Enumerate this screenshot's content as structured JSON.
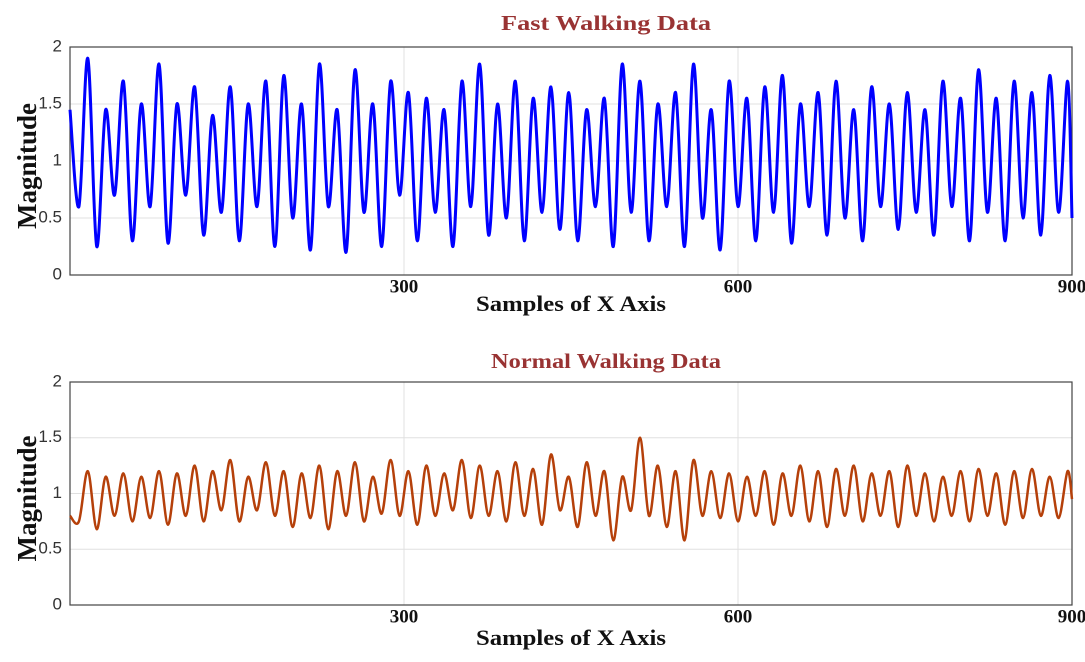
{
  "chart_data": [
    {
      "type": "line",
      "title": "Fast Walking Data",
      "x_label": "Samples of X Axis",
      "y_label": "Magnitude",
      "x": [
        0,
        8,
        16,
        24,
        32,
        40,
        48,
        56,
        64,
        72,
        80,
        88,
        96,
        104,
        112,
        120,
        128,
        136,
        144,
        152,
        160,
        168,
        176,
        184,
        192,
        200,
        208,
        216,
        224,
        232,
        240,
        248,
        256,
        264,
        272,
        280,
        288,
        296,
        304,
        312,
        320,
        328,
        336,
        344,
        352,
        360,
        368,
        376,
        384,
        392,
        400,
        408,
        416,
        424,
        432,
        440,
        448,
        456,
        464,
        472,
        480,
        488,
        496,
        504,
        512,
        520,
        528,
        536,
        544,
        552,
        560,
        568,
        576,
        584,
        592,
        600,
        608,
        616,
        624,
        632,
        640,
        648,
        656,
        664,
        672,
        680,
        688,
        696,
        704,
        712,
        720,
        728,
        736,
        744,
        752,
        760,
        768,
        776,
        784,
        792,
        800,
        808,
        816,
        824,
        832,
        840,
        848,
        856,
        864,
        872,
        880,
        888,
        896,
        900
      ],
      "series": [
        {
          "color": "#0000ff",
          "values": [
            1.45,
            0.6,
            1.9,
            0.25,
            1.45,
            0.7,
            1.7,
            0.3,
            1.5,
            0.6,
            1.85,
            0.28,
            1.5,
            0.7,
            1.65,
            0.35,
            1.4,
            0.55,
            1.65,
            0.3,
            1.5,
            0.6,
            1.7,
            0.25,
            1.75,
            0.5,
            1.5,
            0.22,
            1.85,
            0.6,
            1.45,
            0.2,
            1.8,
            0.55,
            1.5,
            0.25,
            1.7,
            0.7,
            1.6,
            0.3,
            1.55,
            0.55,
            1.45,
            0.25,
            1.7,
            0.6,
            1.85,
            0.35,
            1.5,
            0.5,
            1.7,
            0.3,
            1.55,
            0.55,
            1.65,
            0.4,
            1.6,
            0.3,
            1.45,
            0.6,
            1.55,
            0.25,
            1.85,
            0.55,
            1.7,
            0.3,
            1.5,
            0.6,
            1.6,
            0.25,
            1.85,
            0.5,
            1.45,
            0.22,
            1.7,
            0.6,
            1.55,
            0.3,
            1.65,
            0.55,
            1.75,
            0.28,
            1.5,
            0.6,
            1.6,
            0.35,
            1.7,
            0.5,
            1.45,
            0.3,
            1.65,
            0.6,
            1.5,
            0.4,
            1.6,
            0.55,
            1.45,
            0.35,
            1.7,
            0.6,
            1.55,
            0.3,
            1.8,
            0.55,
            1.55,
            0.3,
            1.7,
            0.5,
            1.6,
            0.35,
            1.75,
            0.55,
            1.7,
            0.5
          ]
        }
      ],
      "xlim": [
        0,
        900
      ],
      "xticks": [
        300,
        600,
        900
      ],
      "ylim": [
        0,
        2
      ],
      "yticks": [
        0,
        0.5,
        1,
        1.5,
        2
      ],
      "grid": true
    },
    {
      "type": "line",
      "title": "Normal Walking Data",
      "x_label": "Samples of X Axis",
      "y_label": "Magnitude",
      "x": [
        0,
        8,
        16,
        24,
        32,
        40,
        48,
        56,
        64,
        72,
        80,
        88,
        96,
        104,
        112,
        120,
        128,
        136,
        144,
        152,
        160,
        168,
        176,
        184,
        192,
        200,
        208,
        216,
        224,
        232,
        240,
        248,
        256,
        264,
        272,
        280,
        288,
        296,
        304,
        312,
        320,
        328,
        336,
        344,
        352,
        360,
        368,
        376,
        384,
        392,
        400,
        408,
        416,
        424,
        432,
        440,
        448,
        456,
        464,
        472,
        480,
        488,
        496,
        504,
        512,
        520,
        528,
        536,
        544,
        552,
        560,
        568,
        576,
        584,
        592,
        600,
        608,
        616,
        624,
        632,
        640,
        648,
        656,
        664,
        672,
        680,
        688,
        696,
        704,
        712,
        720,
        728,
        736,
        744,
        752,
        760,
        768,
        776,
        784,
        792,
        800,
        808,
        816,
        824,
        832,
        840,
        848,
        856,
        864,
        872,
        880,
        888,
        896,
        900
      ],
      "series": [
        {
          "color": "#b5400a",
          "values": [
            0.8,
            0.75,
            1.2,
            0.68,
            1.15,
            0.8,
            1.18,
            0.75,
            1.15,
            0.78,
            1.2,
            0.72,
            1.18,
            0.8,
            1.25,
            0.75,
            1.2,
            0.85,
            1.3,
            0.75,
            1.15,
            0.85,
            1.28,
            0.8,
            1.2,
            0.7,
            1.18,
            0.78,
            1.25,
            0.68,
            1.2,
            0.8,
            1.28,
            0.75,
            1.15,
            0.82,
            1.3,
            0.8,
            1.2,
            0.72,
            1.25,
            0.8,
            1.18,
            0.85,
            1.3,
            0.78,
            1.25,
            0.8,
            1.2,
            0.75,
            1.28,
            0.8,
            1.22,
            0.72,
            1.35,
            0.85,
            1.15,
            0.7,
            1.28,
            0.8,
            1.2,
            0.58,
            1.15,
            0.85,
            1.5,
            0.8,
            1.25,
            0.7,
            1.2,
            0.58,
            1.3,
            0.8,
            1.2,
            0.78,
            1.18,
            0.75,
            1.15,
            0.8,
            1.2,
            0.72,
            1.18,
            0.8,
            1.25,
            0.75,
            1.2,
            0.7,
            1.22,
            0.8,
            1.25,
            0.75,
            1.18,
            0.8,
            1.2,
            0.7,
            1.25,
            0.8,
            1.18,
            0.75,
            1.15,
            0.8,
            1.2,
            0.75,
            1.22,
            0.8,
            1.18,
            0.72,
            1.2,
            0.78,
            1.22,
            0.8,
            1.15,
            0.78,
            1.2,
            0.95
          ]
        }
      ],
      "xlim": [
        0,
        900
      ],
      "xticks": [
        300,
        600,
        900
      ],
      "ylim": [
        0,
        2
      ],
      "yticks": [
        0,
        0.5,
        1,
        1.5,
        2
      ],
      "grid": true
    }
  ]
}
